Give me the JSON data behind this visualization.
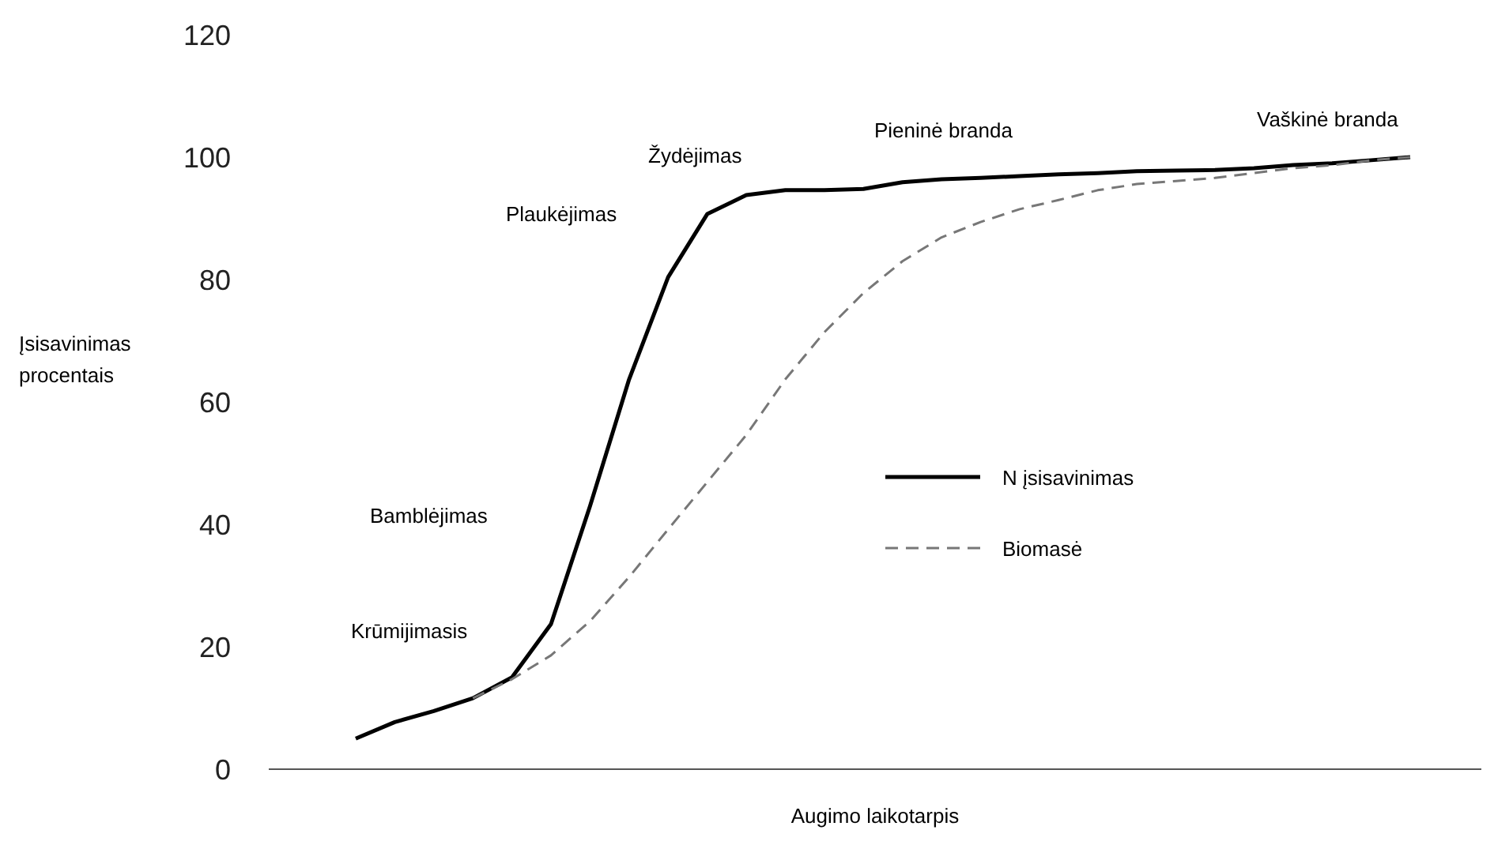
{
  "chart_data": {
    "type": "line",
    "xlabel": "Augimo laikotarpis",
    "ylabel": "Įsisavinimas procentais",
    "categories": [
      null,
      null,
      null,
      null,
      null,
      null,
      null,
      null,
      null,
      null,
      null,
      null,
      null,
      null,
      null,
      null,
      null,
      null,
      null,
      null,
      null,
      null,
      null,
      null,
      null,
      null,
      null,
      null
    ],
    "series": [
      {
        "name": "N įsisavinimas",
        "color": "#000000",
        "line_style": "solid",
        "values": [
          5,
          7.7,
          9.5,
          11.6,
          15,
          23.7,
          43,
          63.7,
          80.4,
          90.7,
          93.8,
          94.6,
          94.6,
          94.8,
          95.9,
          96.4,
          96.6,
          96.9,
          97.2,
          97.4,
          97.7,
          97.8,
          97.9,
          98.2,
          98.7,
          99,
          99.5,
          100
        ]
      },
      {
        "name": "Biomasė",
        "color": "#777777",
        "line_style": "dashed",
        "values": [
          null,
          null,
          null,
          11.6,
          14.7,
          18.6,
          24.2,
          31.4,
          39.2,
          46.9,
          54.6,
          63.7,
          71.4,
          77.8,
          83,
          86.9,
          89.4,
          91.5,
          93,
          94.6,
          95.6,
          96.1,
          96.6,
          97.4,
          98.2,
          98.7,
          99.5,
          100
        ]
      }
    ],
    "ylim": [
      0,
      120
    ],
    "yticks": [
      0,
      20,
      40,
      60,
      80,
      100,
      120
    ],
    "tick_labels": "y",
    "grid": false,
    "legend": "right",
    "marker": "none",
    "annotations": [
      "Krūmijimasis",
      "Bamblėjimas",
      "Plaukėjimas",
      "Žydėjimas",
      "Pieninė branda",
      "Vaškinė branda"
    ]
  }
}
